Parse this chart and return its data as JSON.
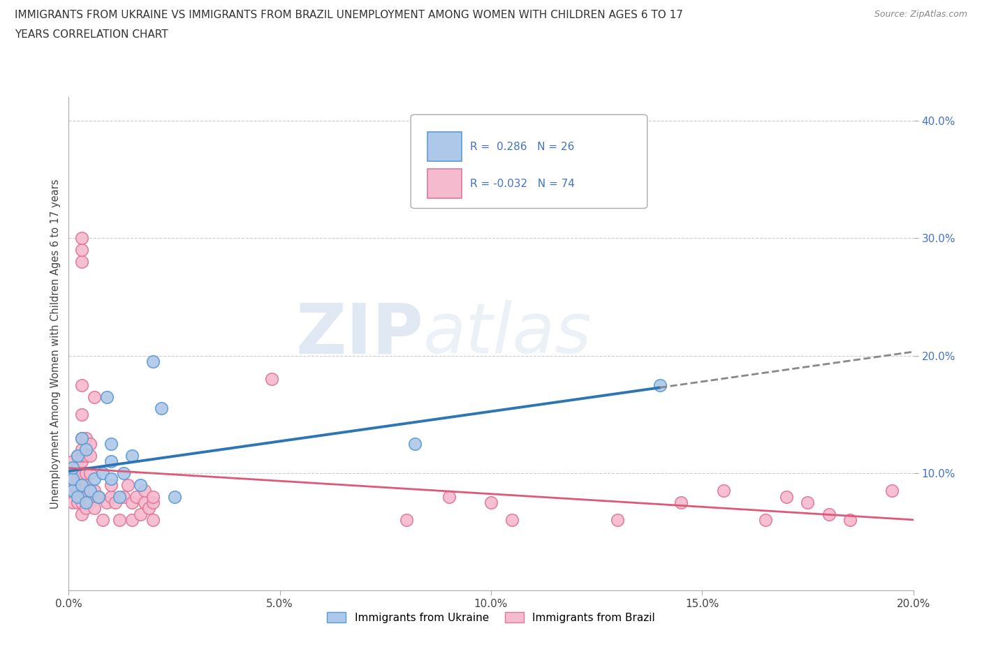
{
  "title_line1": "IMMIGRANTS FROM UKRAINE VS IMMIGRANTS FROM BRAZIL UNEMPLOYMENT AMONG WOMEN WITH CHILDREN AGES 6 TO 17",
  "title_line2": "YEARS CORRELATION CHART",
  "source": "Source: ZipAtlas.com",
  "ylabel": "Unemployment Among Women with Children Ages 6 to 17 years",
  "xlim": [
    0.0,
    0.2
  ],
  "ylim": [
    0.0,
    0.42
  ],
  "xticks": [
    0.0,
    0.05,
    0.1,
    0.15,
    0.2
  ],
  "yticks": [
    0.1,
    0.2,
    0.3,
    0.4
  ],
  "xtick_labels": [
    "0.0%",
    "5.0%",
    "10.0%",
    "15.0%",
    "20.0%"
  ],
  "ytick_labels": [
    "10.0%",
    "20.0%",
    "30.0%",
    "40.0%"
  ],
  "ukraine_color": "#adc8e8",
  "ukraine_edge": "#5b9bd5",
  "brazil_color": "#f5bace",
  "brazil_edge": "#e07898",
  "ukraine_line_color": "#2e75b6",
  "brazil_line_color": "#e05878",
  "ukraine_R": 0.286,
  "ukraine_N": 26,
  "brazil_R": -0.032,
  "brazil_N": 74,
  "watermark_zip": "ZIP",
  "watermark_atlas": "atlas",
  "legend_ukraine": "Immigrants from Ukraine",
  "legend_brazil": "Immigrants from Brazil",
  "ukraine_x": [
    0.001,
    0.001,
    0.001,
    0.002,
    0.002,
    0.003,
    0.003,
    0.004,
    0.004,
    0.005,
    0.006,
    0.007,
    0.008,
    0.009,
    0.01,
    0.01,
    0.01,
    0.012,
    0.013,
    0.015,
    0.017,
    0.02,
    0.022,
    0.025,
    0.082,
    0.14
  ],
  "ukraine_y": [
    0.085,
    0.095,
    0.105,
    0.08,
    0.115,
    0.09,
    0.13,
    0.075,
    0.12,
    0.085,
    0.095,
    0.08,
    0.1,
    0.165,
    0.095,
    0.11,
    0.125,
    0.08,
    0.1,
    0.115,
    0.09,
    0.195,
    0.155,
    0.08,
    0.125,
    0.175
  ],
  "brazil_x": [
    0.001,
    0.001,
    0.001,
    0.001,
    0.001,
    0.001,
    0.002,
    0.002,
    0.002,
    0.002,
    0.002,
    0.003,
    0.003,
    0.003,
    0.003,
    0.003,
    0.003,
    0.003,
    0.003,
    0.003,
    0.003,
    0.003,
    0.003,
    0.003,
    0.003,
    0.003,
    0.003,
    0.004,
    0.004,
    0.004,
    0.004,
    0.004,
    0.004,
    0.005,
    0.005,
    0.005,
    0.005,
    0.005,
    0.006,
    0.006,
    0.006,
    0.007,
    0.008,
    0.009,
    0.01,
    0.01,
    0.011,
    0.012,
    0.013,
    0.014,
    0.015,
    0.015,
    0.016,
    0.017,
    0.018,
    0.018,
    0.019,
    0.02,
    0.02,
    0.02,
    0.048,
    0.08,
    0.09,
    0.1,
    0.105,
    0.13,
    0.145,
    0.155,
    0.165,
    0.17,
    0.175,
    0.18,
    0.185,
    0.195
  ],
  "brazil_y": [
    0.075,
    0.085,
    0.09,
    0.095,
    0.1,
    0.11,
    0.075,
    0.085,
    0.095,
    0.105,
    0.115,
    0.065,
    0.075,
    0.08,
    0.085,
    0.09,
    0.095,
    0.1,
    0.11,
    0.115,
    0.12,
    0.13,
    0.15,
    0.175,
    0.28,
    0.29,
    0.3,
    0.07,
    0.08,
    0.09,
    0.1,
    0.115,
    0.13,
    0.075,
    0.085,
    0.1,
    0.115,
    0.125,
    0.07,
    0.085,
    0.165,
    0.08,
    0.06,
    0.075,
    0.08,
    0.09,
    0.075,
    0.06,
    0.08,
    0.09,
    0.06,
    0.075,
    0.08,
    0.065,
    0.075,
    0.085,
    0.07,
    0.06,
    0.075,
    0.08,
    0.18,
    0.06,
    0.08,
    0.075,
    0.06,
    0.06,
    0.075,
    0.085,
    0.06,
    0.08,
    0.075,
    0.065,
    0.06,
    0.085
  ]
}
